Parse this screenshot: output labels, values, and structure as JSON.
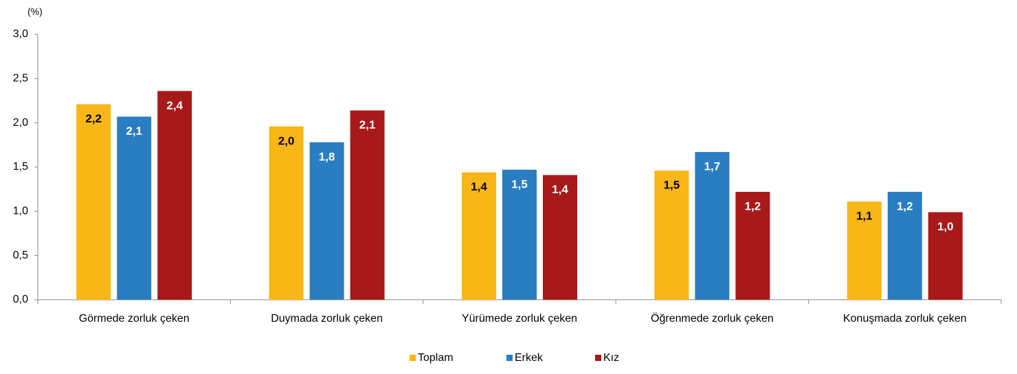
{
  "chart_data": {
    "type": "bar",
    "axis_label": "(%)",
    "categories": [
      "Görmede zorluk çeken",
      "Duymada zorluk çeken",
      "Yürümede zorluk çeken",
      "Öğrenmede zorluk çeken",
      "Konuşmada zorluk çeken"
    ],
    "series": [
      {
        "name": "Toplam",
        "color": "#f9b617",
        "label_color": "#000000",
        "values": [
          2.21,
          1.96,
          1.44,
          1.46,
          1.11
        ],
        "value_labels": [
          "2,2",
          "2,0",
          "1,4",
          "1,5",
          "1,1"
        ]
      },
      {
        "name": "Erkek",
        "color": "#2a7dc0",
        "label_color": "#ffffff",
        "values": [
          2.07,
          1.78,
          1.47,
          1.67,
          1.22
        ],
        "value_labels": [
          "2,1",
          "1,8",
          "1,5",
          "1,7",
          "1,2"
        ]
      },
      {
        "name": "Kız",
        "color": "#a81919",
        "label_color": "#ffffff",
        "values": [
          2.36,
          2.14,
          1.41,
          1.22,
          0.99
        ],
        "value_labels": [
          "2,4",
          "2,1",
          "1,4",
          "1,2",
          "1,0"
        ]
      }
    ],
    "ylim": [
      0,
      3
    ],
    "yticks": [
      {
        "value": 0,
        "label": "0,0"
      },
      {
        "value": 0.5,
        "label": "0,5"
      },
      {
        "value": 1,
        "label": "1,0"
      },
      {
        "value": 1.5,
        "label": "1,5"
      },
      {
        "value": 2,
        "label": "2,0"
      },
      {
        "value": 2.5,
        "label": "2,5"
      },
      {
        "value": 3,
        "label": "3,0"
      }
    ],
    "grid": false,
    "legend": "bottom"
  }
}
